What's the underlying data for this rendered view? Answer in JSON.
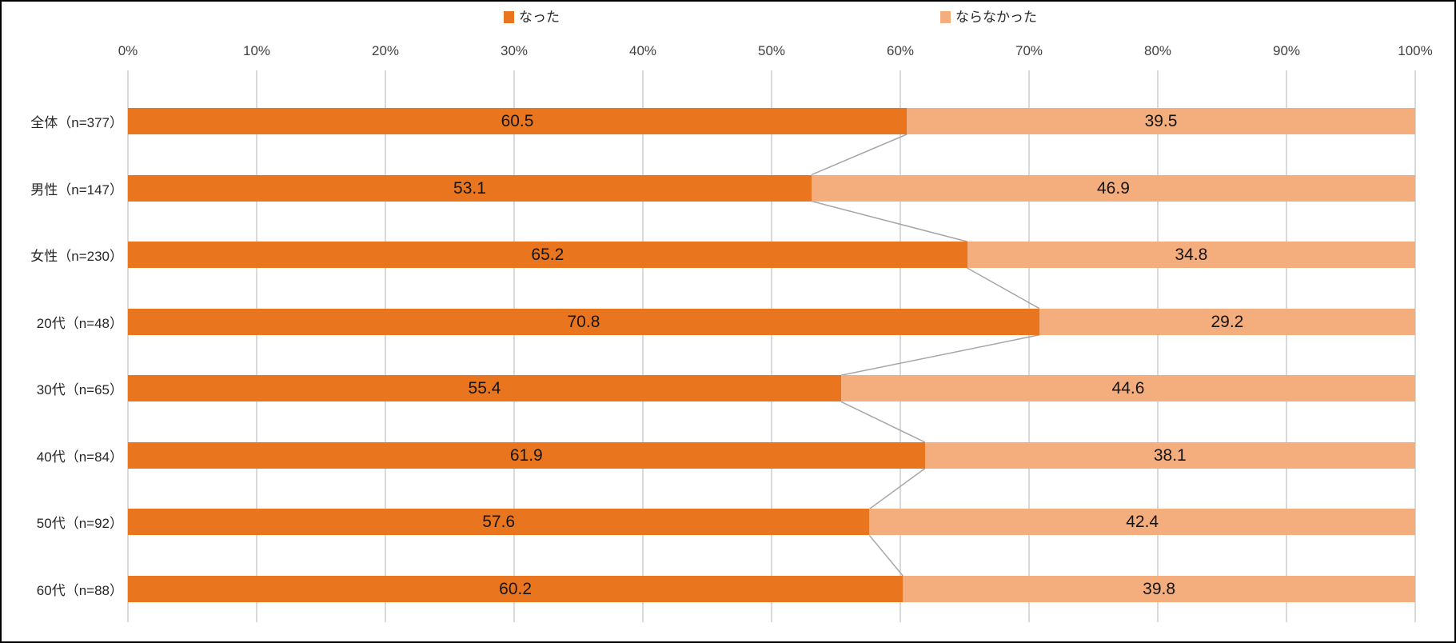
{
  "chart_data": {
    "type": "bar",
    "subtype": "horizontal_stacked_100pct",
    "title": "",
    "categories": [
      "全体（n=377）",
      "男性（n=147）",
      "女性（n=230）",
      "20代（n=48）",
      "30代（n=65）",
      "40代（n=84）",
      "50代（n=92）",
      "60代（n=88）"
    ],
    "series": [
      {
        "name": "なった",
        "color": "#E9761F",
        "values": [
          60.5,
          53.1,
          65.2,
          70.8,
          55.4,
          61.9,
          57.6,
          60.2
        ]
      },
      {
        "name": "ならなかった",
        "color": "#F4AD7D",
        "values": [
          39.5,
          46.9,
          34.8,
          29.2,
          44.6,
          38.1,
          42.4,
          39.8
        ]
      }
    ],
    "x_axis": {
      "min": 0,
      "max": 100,
      "tick_step": 10,
      "tick_labels": [
        "0%",
        "10%",
        "20%",
        "30%",
        "40%",
        "50%",
        "60%",
        "70%",
        "80%",
        "90%",
        "100%"
      ]
    },
    "legend_position": "top",
    "grid": true,
    "data_labels": true,
    "connector_lines": true,
    "colors": {
      "gridline": "#D9D9D9",
      "connector_line": "#A6A6A6",
      "axis_text": "#404040",
      "value_label": "#151515",
      "border": "#000000",
      "background": "#FFFFFF"
    }
  }
}
